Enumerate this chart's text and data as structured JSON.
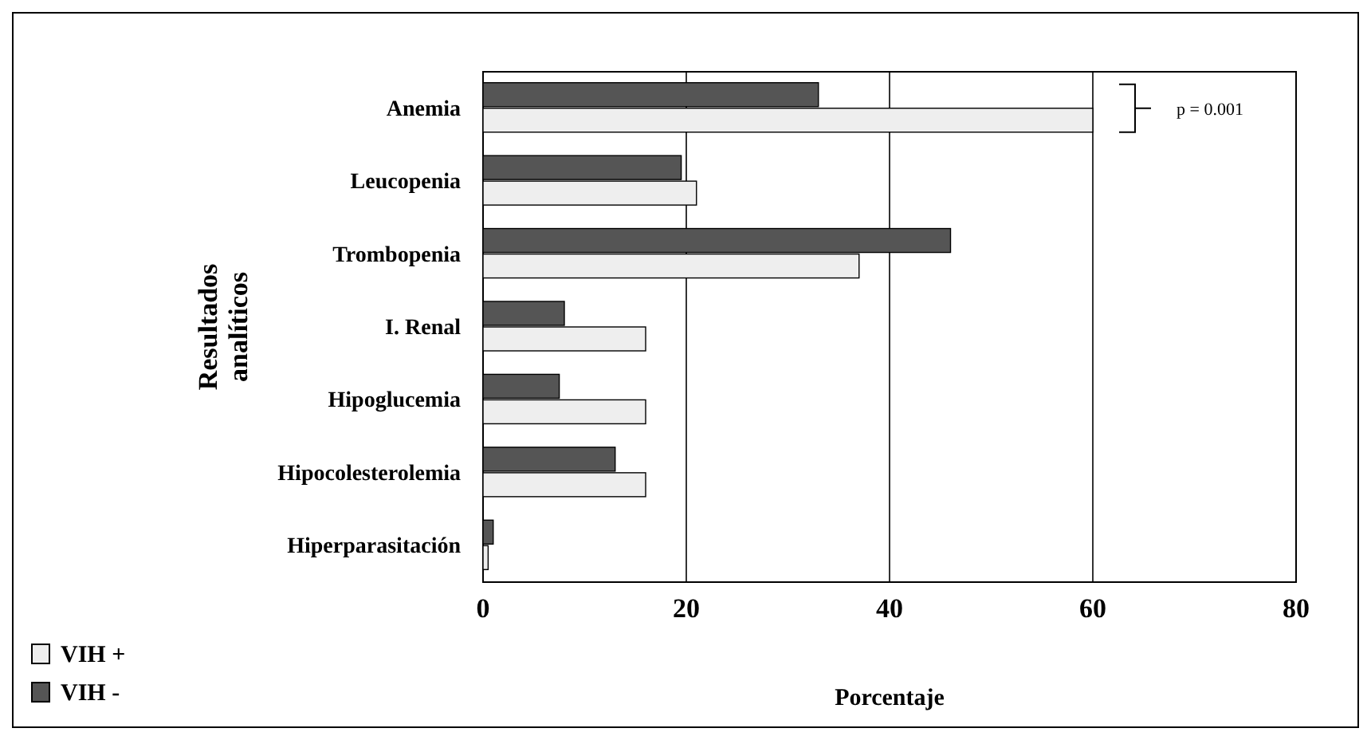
{
  "chart_data": {
    "type": "bar",
    "orientation": "horizontal",
    "ylabel": "Resultados analíticos",
    "xlabel": "Porcentaje",
    "categories": [
      "Anemia",
      "Leucopenia",
      "Trombopenia",
      "I. Renal",
      "Hipoglucemia",
      "Hipocolesterolemia",
      "Hiperparasitación"
    ],
    "series": [
      {
        "name": "VIH +",
        "color": "#eeeeee",
        "values": [
          60,
          21,
          37,
          16,
          16,
          16,
          0.5
        ]
      },
      {
        "name": "VIH -",
        "color": "#555555",
        "values": [
          33,
          19.5,
          46,
          8,
          7.5,
          13,
          1
        ]
      }
    ],
    "xlim": [
      0,
      80
    ],
    "xticks": [
      0,
      20,
      40,
      60,
      80
    ],
    "grid": "x",
    "legend": "bottom left",
    "annotations": [
      "p = 0.001"
    ]
  }
}
